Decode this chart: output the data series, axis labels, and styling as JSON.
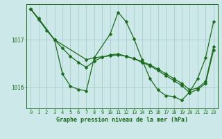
{
  "title": "Graphe pression niveau de la mer (hPa)",
  "background_color": "#cce8e8",
  "grid_color": "#aacccc",
  "line_color": "#1a6b1a",
  "xlim": [
    -0.5,
    23.5
  ],
  "ylim": [
    1015.55,
    1017.75
  ],
  "yticks": [
    1016,
    1017
  ],
  "xticks": [
    0,
    1,
    2,
    3,
    4,
    5,
    6,
    7,
    8,
    9,
    10,
    11,
    12,
    13,
    14,
    15,
    16,
    17,
    18,
    19,
    20,
    21,
    22,
    23
  ],
  "series1_x": [
    0,
    1,
    3,
    7,
    8,
    9,
    10,
    11,
    12,
    13,
    14,
    15,
    16,
    17,
    18,
    19,
    20,
    21,
    22,
    23
  ],
  "series1_y": [
    1017.65,
    1017.45,
    1017.0,
    1016.58,
    1016.62,
    1016.64,
    1016.66,
    1016.68,
    1016.65,
    1016.6,
    1016.54,
    1016.47,
    1016.38,
    1016.28,
    1016.18,
    1016.08,
    1015.94,
    1015.98,
    1016.12,
    1016.85
  ],
  "series2_x": [
    0,
    3,
    4,
    5,
    6,
    7,
    8,
    10,
    11,
    12,
    13,
    14,
    15,
    16,
    17,
    18,
    19,
    20,
    21,
    22,
    23
  ],
  "series2_y": [
    1017.65,
    1017.0,
    1016.28,
    1016.02,
    1015.95,
    1015.92,
    1016.62,
    1017.12,
    1017.58,
    1017.38,
    1017.02,
    1016.58,
    1016.18,
    1015.94,
    1015.82,
    1015.8,
    1015.72,
    1015.9,
    1016.18,
    1016.62,
    1017.38
  ],
  "series3_x": [
    0,
    1,
    2,
    3,
    4,
    5,
    6,
    7,
    8,
    9,
    10,
    11,
    12,
    13,
    14,
    15,
    16,
    17,
    18,
    19,
    20,
    21,
    22,
    23
  ],
  "series3_y": [
    1017.65,
    1017.43,
    1017.2,
    1017.0,
    1016.82,
    1016.65,
    1016.52,
    1016.42,
    1016.55,
    1016.63,
    1016.68,
    1016.7,
    1016.65,
    1016.6,
    1016.52,
    1016.45,
    1016.35,
    1016.24,
    1016.14,
    1016.03,
    1015.88,
    1015.95,
    1016.08,
    1016.78
  ]
}
